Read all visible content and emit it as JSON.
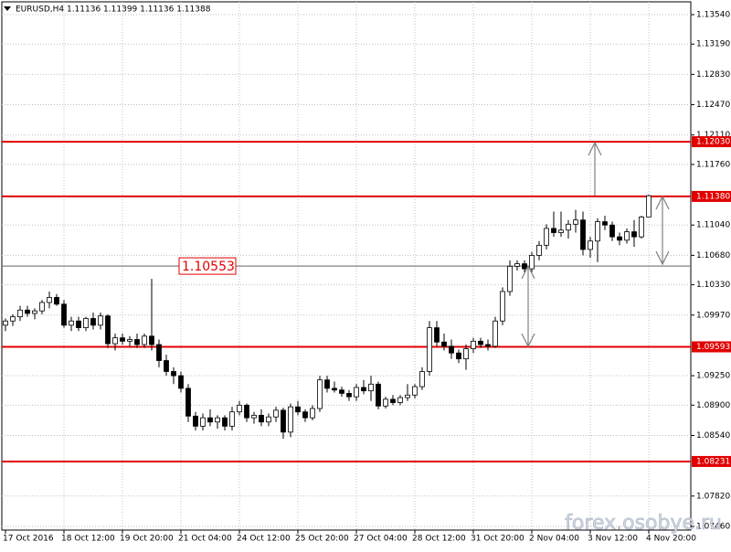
{
  "header": "EURUSD,H4  1.11136 1.11399 1.11136 1.11388",
  "watermark": "forex.osobye.ru",
  "chart_data": {
    "type": "candlestick",
    "categories": [
      "17 Oct 2016",
      null,
      null,
      null,
      null,
      null,
      null,
      null,
      "18 Oct 12:00",
      null,
      null,
      null,
      null,
      null,
      null,
      null,
      "19 Oct 20:00",
      null,
      null,
      null,
      null,
      null,
      null,
      null,
      "21 Oct 04:00",
      null,
      null,
      null,
      null,
      null,
      null,
      null,
      "24 Oct 12:00",
      null,
      null,
      null,
      null,
      null,
      null,
      null,
      "25 Oct 20:00",
      null,
      null,
      null,
      null,
      null,
      null,
      null,
      "27 Oct 04:00",
      null,
      null,
      null,
      null,
      null,
      null,
      null,
      "28 Oct 12:00",
      null,
      null,
      null,
      null,
      null,
      null,
      null,
      "31 Oct 20:00",
      null,
      null,
      null,
      null,
      null,
      null,
      null,
      "2 Nov 04:00",
      null,
      null,
      null,
      null,
      null,
      null,
      null,
      "3 Nov 12:00",
      null,
      null,
      null,
      null,
      null,
      null,
      null,
      "4 Nov 20:00"
    ],
    "open": [
      1.0985,
      1.099,
      1.0995,
      1.1003,
      1.0999,
      1.1002,
      1.1012,
      1.1018,
      1.101,
      1.0985,
      1.099,
      1.0982,
      1.0993,
      1.0985,
      1.0996,
      1.0963,
      1.097,
      1.0966,
      1.0968,
      1.0962,
      1.0972,
      1.0962,
      1.0943,
      1.093,
      1.0925,
      1.091,
      1.0877,
      1.0865,
      1.0875,
      1.087,
      1.0875,
      1.0865,
      1.0882,
      1.089,
      1.0875,
      1.0878,
      1.087,
      1.0876,
      1.0884,
      1.0858,
      1.0888,
      1.0882,
      1.0875,
      1.0886,
      1.092,
      1.091,
      1.0908,
      1.0904,
      1.09,
      1.0911,
      1.0907,
      1.0915,
      1.0889,
      1.0897,
      1.0893,
      1.0899,
      1.0902,
      1.0912,
      1.093,
      1.0982,
      1.0965,
      1.096,
      1.0952,
      1.0945,
      1.0957,
      1.0966,
      1.0962,
      1.096,
      1.099,
      1.1025,
      1.1055,
      1.1058,
      1.1052,
      1.1068,
      1.108,
      1.11,
      1.1095,
      1.1098,
      1.1105,
      1.111,
      1.1075,
      1.1085,
      1.1108,
      1.1104,
      1.109,
      1.1086,
      1.1096,
      1.109,
      1.11136
    ],
    "high": [
      1.0993,
      1.0998,
      1.1008,
      1.1008,
      1.1005,
      1.1015,
      1.1025,
      1.1022,
      1.1015,
      1.0995,
      1.0995,
      1.0995,
      1.1,
      1.1,
      1.0998,
      1.0975,
      1.0975,
      1.0972,
      1.0975,
      1.0975,
      1.104,
      1.0968,
      1.095,
      1.0935,
      1.093,
      1.0915,
      1.0882,
      1.088,
      1.0885,
      1.0878,
      1.0878,
      1.0888,
      1.0895,
      1.0892,
      1.0882,
      1.0885,
      1.088,
      1.0888,
      1.0887,
      1.0892,
      1.0895,
      1.0885,
      1.089,
      1.0925,
      1.0925,
      1.0918,
      1.0912,
      1.0908,
      1.0915,
      1.092,
      1.0925,
      1.0918,
      1.09,
      1.0902,
      1.0902,
      1.0915,
      1.0915,
      1.0935,
      1.099,
      1.099,
      1.0975,
      1.0968,
      1.0956,
      1.0962,
      1.097,
      1.097,
      1.0968,
      1.0995,
      1.103,
      1.1062,
      1.1062,
      1.1062,
      1.1072,
      1.1085,
      1.1105,
      1.112,
      1.112,
      1.111,
      1.1122,
      1.112,
      1.109,
      1.1112,
      1.1115,
      1.1108,
      1.1095,
      1.11,
      1.111,
      1.1115,
      1.11399
    ],
    "low": [
      1.0978,
      1.0984,
      1.099,
      1.0995,
      1.0992,
      1.0998,
      1.1005,
      1.1008,
      1.0982,
      1.0978,
      1.0978,
      1.0978,
      1.098,
      1.098,
      1.0958,
      1.0955,
      1.0962,
      1.096,
      1.0958,
      1.0958,
      1.0955,
      1.0935,
      1.0925,
      1.0915,
      1.0905,
      1.087,
      1.086,
      1.086,
      1.0865,
      1.0862,
      1.086,
      1.086,
      1.0878,
      1.087,
      1.0868,
      1.0865,
      1.0865,
      1.087,
      1.085,
      1.0852,
      1.0878,
      1.087,
      1.0872,
      1.0882,
      1.0905,
      1.0905,
      1.09,
      1.0895,
      1.0895,
      1.0903,
      1.0895,
      1.0885,
      1.0886,
      1.089,
      1.089,
      1.0895,
      1.0898,
      1.0908,
      1.0925,
      1.096,
      1.0955,
      1.0945,
      1.094,
      1.0932,
      1.0952,
      1.0958,
      1.0955,
      1.0958,
      1.0985,
      1.102,
      1.105,
      1.1048,
      1.1048,
      1.1062,
      1.1075,
      1.109,
      1.109,
      1.1088,
      1.1095,
      1.1068,
      1.1065,
      1.106,
      1.1098,
      1.1085,
      1.108,
      1.1082,
      1.1078,
      1.1088,
      1.11136
    ],
    "close": [
      1.099,
      1.0995,
      1.1003,
      1.0999,
      1.1002,
      1.1012,
      1.1018,
      1.101,
      1.0985,
      1.099,
      1.0982,
      1.0993,
      1.0985,
      1.0996,
      1.0963,
      1.097,
      1.0966,
      1.0968,
      1.0962,
      1.0972,
      1.0962,
      1.0943,
      1.093,
      1.0925,
      1.091,
      1.0877,
      1.0865,
      1.0875,
      1.087,
      1.0875,
      1.0865,
      1.0882,
      1.089,
      1.0875,
      1.0878,
      1.087,
      1.0876,
      1.0884,
      1.0858,
      1.0888,
      1.0882,
      1.0875,
      1.0886,
      1.092,
      1.091,
      1.0908,
      1.0904,
      1.09,
      1.0911,
      1.0907,
      1.0915,
      1.0889,
      1.0897,
      1.0893,
      1.0899,
      1.0902,
      1.0912,
      1.093,
      1.0982,
      1.0965,
      1.096,
      1.0952,
      1.0945,
      1.0957,
      1.0966,
      1.0962,
      1.096,
      1.099,
      1.1025,
      1.1055,
      1.1058,
      1.1052,
      1.1068,
      1.108,
      1.11,
      1.1095,
      1.1098,
      1.1105,
      1.111,
      1.1075,
      1.1085,
      1.1108,
      1.1104,
      1.109,
      1.1086,
      1.1096,
      1.109,
      1.11136,
      1.11388
    ],
    "ylim": [
      1.07416,
      1.13692
    ],
    "yticks": [
      {
        "value": 1.1354,
        "label": "1.13540"
      },
      {
        "value": 1.1319,
        "label": "1.13190"
      },
      {
        "value": 1.1283,
        "label": "1.12830"
      },
      {
        "value": 1.1247,
        "label": "1.12470"
      },
      {
        "value": 1.1211,
        "label": "1.12110"
      },
      {
        "value": 1.1176,
        "label": "1.11760"
      },
      {
        "value": 1.1104,
        "label": "1.11040"
      },
      {
        "value": 1.1068,
        "label": "1.10680"
      },
      {
        "value": 1.1033,
        "label": "1.10330"
      },
      {
        "value": 1.0997,
        "label": "1.09970"
      },
      {
        "value": 1.0925,
        "label": "1.09250"
      },
      {
        "value": 1.089,
        "label": "1.08900"
      },
      {
        "value": 1.0854,
        "label": "1.08540"
      },
      {
        "value": 1.0782,
        "label": "1.07820"
      },
      {
        "value": 1.0746,
        "label": "1.07460"
      }
    ],
    "grid": true,
    "levels": [
      {
        "value": 1.1203,
        "label": "1.12030",
        "color": "#e00000",
        "label_at": "axis"
      },
      {
        "value": 1.1138,
        "label": "1.11380",
        "color": "#e00000",
        "label_at": "axis"
      },
      {
        "value": 1.09593,
        "label": "1.09593",
        "color": "#e00000",
        "label_at": "axis"
      },
      {
        "value": 1.08231,
        "label": "1.08231",
        "color": "#e00000",
        "label_at": "axis"
      },
      {
        "value": 1.10553,
        "label": "1.10553",
        "color": "#808080",
        "label_at": "chart"
      }
    ]
  }
}
